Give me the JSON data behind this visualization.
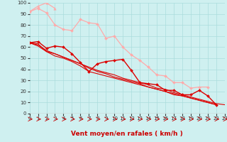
{
  "xlabel": "Vent moyen/en rafales ( km/h )",
  "background_color": "#cff0f0",
  "grid_color": "#aadddd",
  "x_values": [
    0,
    1,
    2,
    3,
    4,
    5,
    6,
    7,
    8,
    9,
    10,
    11,
    12,
    13,
    14,
    15,
    16,
    17,
    18,
    19,
    20,
    21,
    22,
    23
  ],
  "series": [
    {
      "y": [
        92,
        95,
        91,
        80,
        76,
        75,
        85,
        82,
        81,
        68,
        70,
        60,
        53,
        48,
        42,
        35,
        34,
        28,
        28,
        23,
        24,
        24,
        null,
        null
      ],
      "color": "#ffaaaa",
      "marker": "D",
      "markersize": 2.0,
      "linewidth": 0.9
    },
    {
      "y": [
        92,
        97,
        100,
        95,
        null,
        null,
        null,
        null,
        null,
        null,
        null,
        null,
        null,
        null,
        null,
        null,
        null,
        null,
        null,
        null,
        null,
        null,
        null,
        null
      ],
      "color": "#ffaaaa",
      "marker": "^",
      "markersize": 2.5,
      "linewidth": 0.9
    },
    {
      "y": [
        92,
        null,
        null,
        null,
        null,
        null,
        null,
        null,
        null,
        null,
        null,
        null,
        null,
        null,
        null,
        null,
        null,
        null,
        null,
        null,
        null,
        null,
        24,
        null
      ],
      "color": "#ffaaaa",
      "marker": null,
      "markersize": 0,
      "linewidth": 0.8
    },
    {
      "y": [
        64,
        65,
        59,
        61,
        60,
        54,
        46,
        38,
        45,
        47,
        48,
        49,
        39,
        28,
        27,
        26,
        21,
        21,
        17,
        17,
        21,
        16,
        8,
        null
      ],
      "color": "#dd0000",
      "marker": "D",
      "markersize": 2.0,
      "linewidth": 1.0
    },
    {
      "y": [
        64,
        63,
        56,
        52,
        50,
        47,
        43,
        38,
        36,
        34,
        32,
        30,
        28,
        26,
        24,
        22,
        20,
        17,
        16,
        14,
        12,
        10,
        8,
        null
      ],
      "color": "#dd0000",
      "marker": null,
      "markersize": 0,
      "linewidth": 0.8
    },
    {
      "y": [
        64,
        62,
        57,
        54,
        51,
        48,
        45,
        42,
        39,
        37,
        35,
        32,
        30,
        28,
        26,
        23,
        22,
        19,
        17,
        15,
        13,
        11,
        9,
        8
      ],
      "color": "#dd0000",
      "marker": null,
      "markersize": 0,
      "linewidth": 0.8
    },
    {
      "y": [
        64,
        61,
        56,
        54,
        51,
        48,
        45,
        41,
        38,
        36,
        33,
        31,
        29,
        27,
        24,
        22,
        20,
        18,
        16,
        14,
        12,
        10,
        8,
        null
      ],
      "color": "#dd0000",
      "marker": null,
      "markersize": 0,
      "linewidth": 0.8
    },
    {
      "y": [
        64,
        null,
        null,
        null,
        null,
        null,
        null,
        null,
        null,
        null,
        null,
        null,
        null,
        null,
        null,
        null,
        null,
        null,
        null,
        null,
        null,
        null,
        null,
        8
      ],
      "color": "#dd0000",
      "marker": null,
      "markersize": 0,
      "linewidth": 0.8
    }
  ],
  "arrows_x": [
    0,
    1,
    2,
    3,
    4,
    5,
    6,
    7,
    8,
    9,
    10,
    11,
    12,
    13,
    14,
    15,
    16,
    17,
    18,
    19,
    20,
    21,
    22,
    23
  ],
  "arrow_color": "#cc0000",
  "xlim": [
    0,
    23
  ],
  "ylim": [
    0,
    100
  ],
  "yticks": [
    0,
    10,
    20,
    30,
    40,
    50,
    60,
    70,
    80,
    90,
    100
  ],
  "xticks": [
    0,
    1,
    2,
    3,
    4,
    5,
    6,
    7,
    8,
    9,
    10,
    11,
    12,
    13,
    14,
    15,
    16,
    17,
    18,
    19,
    20,
    21,
    22,
    23
  ],
  "tick_fontsize": 5,
  "xlabel_fontsize": 6.5,
  "xlabel_color": "#cc0000"
}
